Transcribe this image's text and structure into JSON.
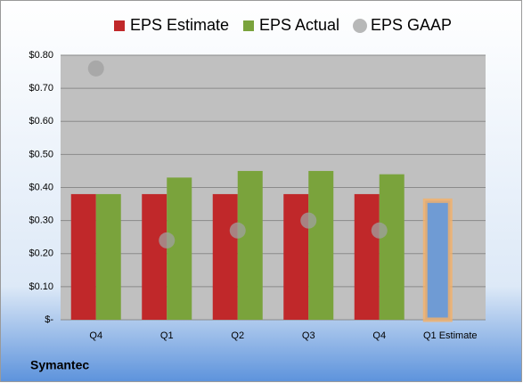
{
  "chart_data": {
    "type": "bar",
    "title": "Symantec",
    "categories": [
      "Q4",
      "Q1",
      "Q2",
      "Q3",
      "Q4",
      "Q1 Estimate"
    ],
    "series": [
      {
        "name": "EPS Estimate",
        "type": "bar",
        "color": "#c0282a",
        "colors": [
          "#c0282a",
          "#c0282a",
          "#c0282a",
          "#c0282a",
          "#c0282a",
          "#6f9bd4"
        ],
        "outline_colors": [
          null,
          null,
          null,
          null,
          null,
          "#f5b066"
        ],
        "values": [
          0.38,
          0.38,
          0.38,
          0.38,
          0.38,
          0.36
        ]
      },
      {
        "name": "EPS Actual",
        "type": "bar",
        "color": "#7aa33c",
        "values": [
          0.38,
          0.43,
          0.45,
          0.45,
          0.44,
          null
        ]
      },
      {
        "name": "EPS GAAP",
        "type": "scatter",
        "color": "#a0a0a0",
        "values": [
          0.76,
          0.24,
          0.27,
          0.3,
          0.27,
          null
        ]
      }
    ],
    "ylim": [
      0,
      0.8
    ],
    "yticks": [
      {
        "value": 0,
        "label": "$-"
      },
      {
        "value": 0.1,
        "label": "$0.10"
      },
      {
        "value": 0.2,
        "label": "$0.20"
      },
      {
        "value": 0.3,
        "label": "$0.30"
      },
      {
        "value": 0.4,
        "label": "$0.40"
      },
      {
        "value": 0.5,
        "label": "$0.50"
      },
      {
        "value": 0.6,
        "label": "$0.60"
      },
      {
        "value": 0.7,
        "label": "$0.70"
      },
      {
        "value": 0.8,
        "label": "$0.80"
      }
    ],
    "grid": true
  }
}
